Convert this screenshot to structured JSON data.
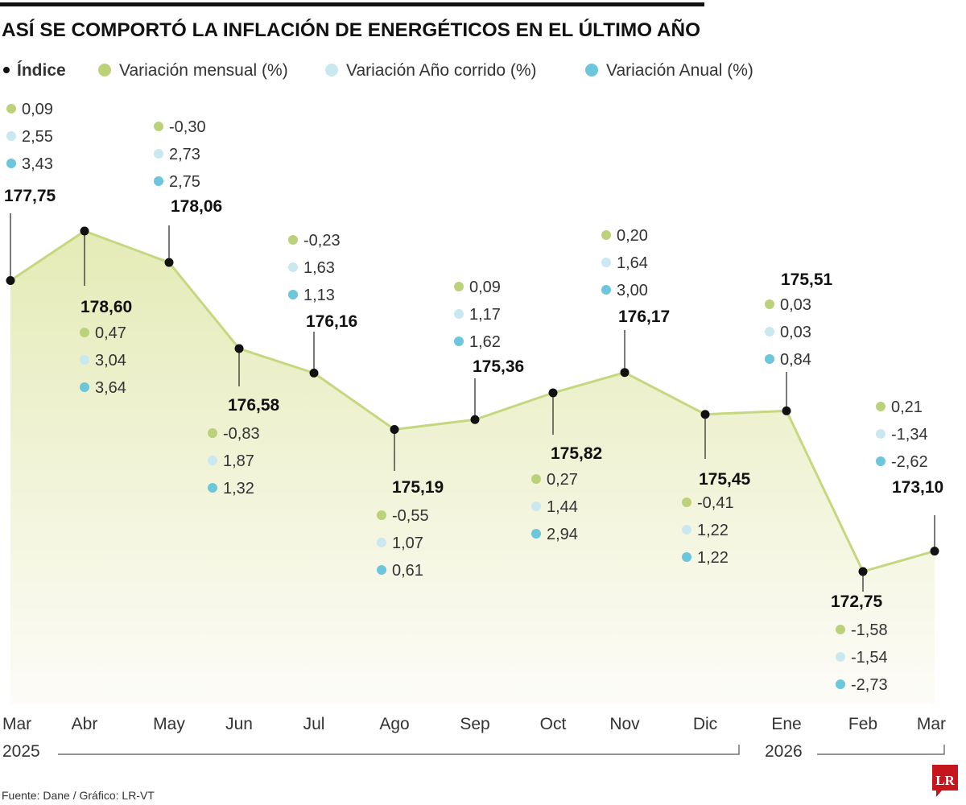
{
  "chart_data": {
    "type": "area",
    "title": "ASÍ SE COMPORTÓ LA INFLACIÓN DE ENERGÉTICOS EN EL ÚLTIMO AÑO",
    "legend": [
      {
        "name": "Índice",
        "color": "#111111"
      },
      {
        "name": "Variación mensual (%)",
        "color": "#bcd27a"
      },
      {
        "name": "Variación Año corrido (%)",
        "color": "#c9e8f0"
      },
      {
        "name": "Variación Anual (%)",
        "color": "#6cc6dc"
      }
    ],
    "legend_placement": "top",
    "categories": [
      "Mar",
      "Abr",
      "May",
      "Jun",
      "Jul",
      "Ago",
      "Sep",
      "Oct",
      "Nov",
      "Dic",
      "Ene",
      "Feb",
      "Mar"
    ],
    "years": [
      {
        "label": "2025"
      },
      {
        "label": "2026"
      }
    ],
    "index_labels": [
      "177,75",
      "178,60",
      "178,06",
      "176,58",
      "176,16",
      "175,19",
      "175,36",
      "175,82",
      "176,17",
      "175,45",
      "175,51",
      "172,75",
      "173,10"
    ],
    "series": [
      {
        "name": "Índice",
        "values": [
          177.75,
          178.6,
          178.06,
          176.58,
          176.16,
          175.19,
          175.36,
          175.82,
          176.17,
          175.45,
          175.51,
          172.75,
          173.1
        ]
      },
      {
        "name": "Variación mensual (%)",
        "labels": [
          "0,09",
          "0,47",
          "-0,30",
          "-0,83",
          "-0,23",
          "-0,55",
          "0,09",
          "0,27",
          "0,20",
          "-0,41",
          "0,03",
          "-1,58",
          "0,21"
        ]
      },
      {
        "name": "Variación Año corrido (%)",
        "labels": [
          "2,55",
          "3,04",
          "2,73",
          "1,87",
          "1,63",
          "1,07",
          "1,17",
          "1,44",
          "1,64",
          "1,22",
          "0,03",
          "-1,54",
          "-1,34"
        ]
      },
      {
        "name": "Variación Anual (%)",
        "labels": [
          "3,43",
          "3,64",
          "2,75",
          "1,32",
          "1,13",
          "0,61",
          "1,62",
          "2,94",
          "3,00",
          "1,22",
          "0,84",
          "-2,73",
          "-2,62"
        ]
      }
    ],
    "line_color": "#c5d77f",
    "fill_color": "#e6edbd",
    "grid": false
  },
  "footer": {
    "source": "Fuente: Dane / Gráfico: LR-VT",
    "logo": "LR",
    "logo_color": "#c4161c"
  }
}
